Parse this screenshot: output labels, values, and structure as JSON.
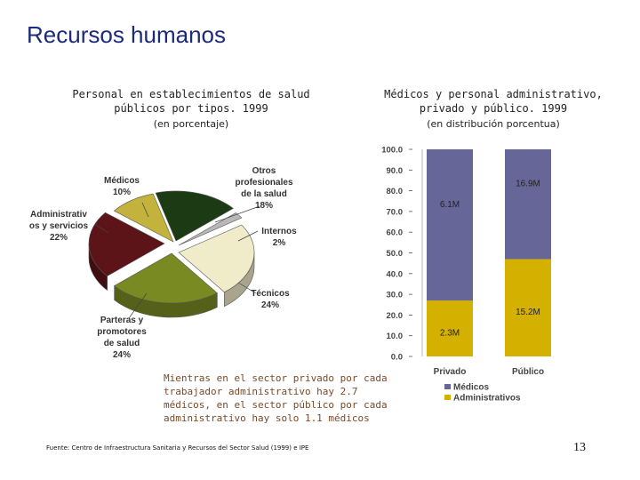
{
  "page": {
    "title": "Recursos humanos",
    "note": "Mientras en el sector privado por cada trabajador administrativo hay 2.7 médicos, en el sector público por cada administrativo hay solo 1.1 médicos",
    "source": "Fuente: Centro de Infraestructura Sanitaria y Recursos del Sector Salud (1999) e IPE",
    "page_number": "13"
  },
  "chart_data": [
    {
      "type": "pie",
      "title": "Personal en establecimientos de salud públicos por tipos. 1999",
      "subtitle": "(en porcentaje)",
      "slices": [
        {
          "name": "Médicos",
          "value": 10,
          "color": "#c3b33c",
          "label_lines": [
            "Médicos",
            "10%"
          ]
        },
        {
          "name": "Otros profesionales de la salud",
          "value": 18,
          "color": "#1c3a14",
          "label_lines": [
            "Otros",
            "profesionales",
            "de la salud",
            "18%"
          ]
        },
        {
          "name": "Internos",
          "value": 2,
          "color": "#b8b8b8",
          "label_lines": [
            "Internos",
            "2%"
          ]
        },
        {
          "name": "Técnicos",
          "value": 24,
          "color": "#f0ebc8",
          "label_lines": [
            "Técnicos",
            "24%"
          ]
        },
        {
          "name": "Parteras y promotores de salud",
          "value": 24,
          "color": "#7a8a22",
          "label_lines": [
            "Parteras y",
            "promotores",
            "de salud",
            "24%"
          ]
        },
        {
          "name": "Administrativos y servicios",
          "value": 22,
          "color": "#5c1418",
          "label_lines": [
            "Administrativ",
            "os y servicios",
            "22%"
          ]
        }
      ]
    },
    {
      "type": "bar",
      "stacked": true,
      "title": "Médicos y personal administrativo, privado y público. 1999",
      "subtitle": "(en distribución porcentua)",
      "categories": [
        "Privado",
        "Público"
      ],
      "series": [
        {
          "name": "Médicos",
          "color": "#666699",
          "values": [
            73,
            53
          ],
          "labels": [
            "6.1M",
            "16.9M"
          ]
        },
        {
          "name": "Administrativos",
          "color": "#d4b000",
          "values": [
            27,
            47
          ],
          "labels": [
            "2.3M",
            "15.2M"
          ]
        }
      ],
      "ylim": [
        0,
        100
      ],
      "yticks": [
        "0.0",
        "10.0",
        "20.0",
        "30.0",
        "40.0",
        "50.0",
        "60.0",
        "70.0",
        "80.0",
        "90.0",
        "100.0"
      ],
      "legend": [
        "Médicos",
        "Administrativos"
      ]
    }
  ]
}
